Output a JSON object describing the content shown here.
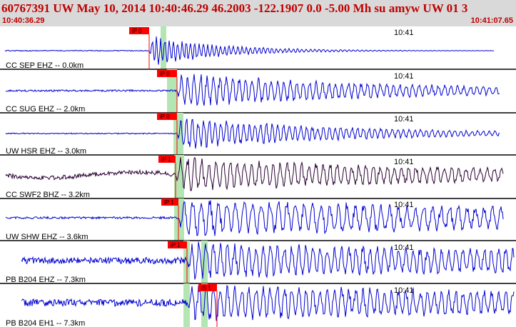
{
  "header": {
    "title": "60767391 UW May 10, 2014 10:40:46.29   46.2003 -122.1907  0.0 -5.00 Mh su amyw UW 01   3",
    "time_start": "10:40:36.29",
    "time_end": "10:41:07.65"
  },
  "colors": {
    "header_bg": "#d9d9d9",
    "header_text": "#c00000",
    "trace": "#0000d0",
    "trace_dark": "#2a0033",
    "pick": "#ff0000",
    "window": "#b3e6b3"
  },
  "traces": [
    {
      "label": "CC SEP EHZ -- 0.0km",
      "time_mark": "10:41",
      "pick": "iP 0",
      "color": "blue"
    },
    {
      "label": "CC SUG EHZ -- 2.0km",
      "time_mark": "10:41",
      "pick": "iP 0",
      "color": "blue"
    },
    {
      "label": "UW HSR EHZ -- 3.0km",
      "time_mark": "10:41",
      "pick": "iP 0",
      "color": "blue"
    },
    {
      "label": "CC SWF2 BHZ -- 3.2km",
      "time_mark": "10:41",
      "pick": "iP 1",
      "color": "dark"
    },
    {
      "label": "UW SHW EHZ -- 3.6km",
      "time_mark": "10:41",
      "pick": "iP 1",
      "color": "blue"
    },
    {
      "label": "PB B204 EHZ -- 7.3km",
      "time_mark": "10:41",
      "pick": "iP 1",
      "color": "blue"
    },
    {
      "label": "PB B204 EH1 -- 7.3km",
      "time_mark": "10:41",
      "pick": "iS 1",
      "color": "blue"
    }
  ]
}
